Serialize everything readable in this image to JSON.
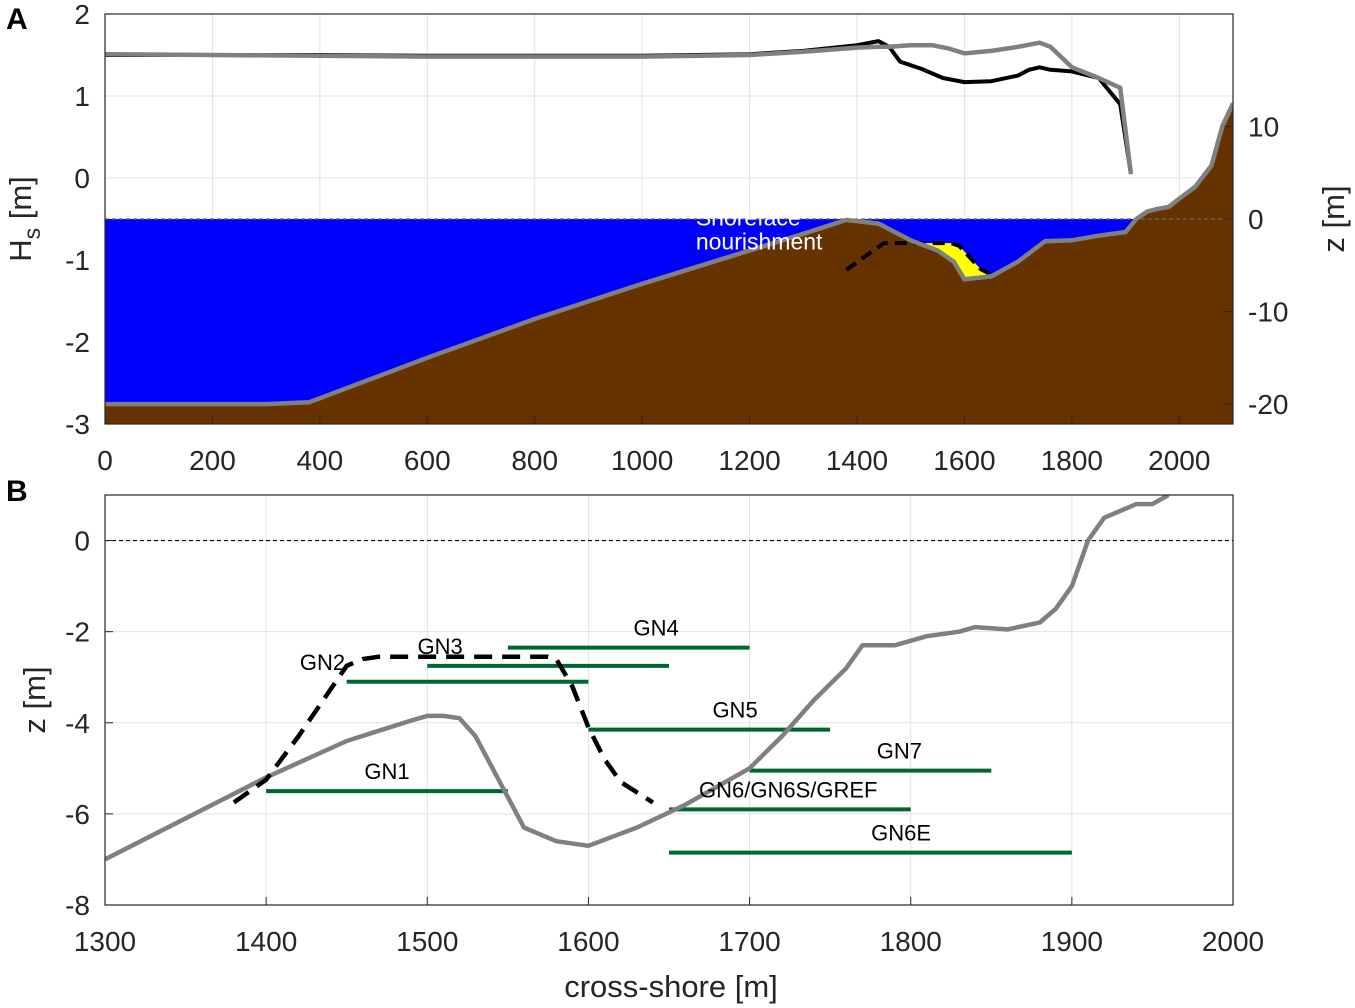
{
  "chart_data": [
    {
      "panel": "A",
      "type": "line",
      "title": "",
      "xlabel": "",
      "ylabel_left": "H_s [m]",
      "ylabel_left_main": "H",
      "ylabel_left_sub": "s",
      "ylabel_left_unit": " [m]",
      "ylabel_right": "z [m]",
      "xlim": [
        0,
        2100
      ],
      "ylim_left": [
        -3,
        2
      ],
      "ylim_right": [
        -22.15,
        22.15
      ],
      "xticks": [
        0,
        200,
        400,
        600,
        800,
        1000,
        1200,
        1400,
        1600,
        1800,
        2000
      ],
      "yticks_left": [
        2,
        1,
        0,
        -1,
        -2,
        -3
      ],
      "yticks_right": [
        10,
        0,
        -10,
        -20
      ],
      "grid": true,
      "colors": {
        "water": "#0000ff",
        "bed": "#663300",
        "nourishment": "#ffff00",
        "hs_line": "#000000",
        "hs_line_nourished": "#808080",
        "profile_line": "#808080"
      },
      "series": [
        {
          "role": "bed-profile-z",
          "axis": "right",
          "x": [
            0,
            150,
            300,
            380,
            600,
            800,
            1000,
            1200,
            1300,
            1380,
            1440,
            1500,
            1550,
            1580,
            1600,
            1650,
            1700,
            1750,
            1800,
            1850,
            1900,
            1920,
            1940,
            1960,
            1980,
            2000,
            2030,
            2060,
            2080,
            2100
          ],
          "y": [
            -20.0,
            -20.0,
            -20.0,
            -19.8,
            -15.0,
            -10.8,
            -7.0,
            -3.4,
            -1.6,
            -0.1,
            -0.5,
            -2.3,
            -3.4,
            -4.6,
            -6.5,
            -6.2,
            -4.6,
            -2.4,
            -2.3,
            -1.8,
            -1.4,
            0.0,
            0.8,
            1.1,
            1.3,
            2.2,
            3.5,
            5.8,
            10.0,
            12.5
          ]
        },
        {
          "role": "nourishment-profile-z",
          "axis": "right",
          "x": [
            1380,
            1450,
            1470,
            1575,
            1590,
            1630,
            1650
          ],
          "y": [
            -5.5,
            -2.6,
            -2.6,
            -2.6,
            -2.9,
            -5.4,
            -6.0
          ]
        },
        {
          "name": "",
          "role": "hs-reference",
          "color": "#000000",
          "axis": "left",
          "x": [
            0,
            200,
            400,
            600,
            800,
            1000,
            1200,
            1300,
            1400,
            1440,
            1460,
            1480,
            1520,
            1560,
            1600,
            1650,
            1700,
            1720,
            1740,
            1760,
            1800,
            1850,
            1890,
            1910
          ],
          "y": [
            1.5,
            1.5,
            1.5,
            1.49,
            1.49,
            1.49,
            1.51,
            1.55,
            1.62,
            1.67,
            1.6,
            1.42,
            1.33,
            1.22,
            1.17,
            1.18,
            1.25,
            1.32,
            1.35,
            1.32,
            1.3,
            1.22,
            0.9,
            0.05
          ]
        },
        {
          "name": "",
          "role": "hs-nourished",
          "color": "#808080",
          "axis": "left",
          "x": [
            0,
            200,
            400,
            600,
            800,
            1000,
            1200,
            1300,
            1400,
            1440,
            1460,
            1500,
            1540,
            1570,
            1600,
            1650,
            1700,
            1740,
            1760,
            1800,
            1850,
            1890,
            1910
          ],
          "y": [
            1.51,
            1.5,
            1.49,
            1.48,
            1.48,
            1.48,
            1.5,
            1.54,
            1.59,
            1.6,
            1.6,
            1.62,
            1.62,
            1.58,
            1.52,
            1.55,
            1.6,
            1.65,
            1.6,
            1.35,
            1.22,
            1.1,
            0.05
          ]
        }
      ],
      "annotations": [
        {
          "text": "Shoreface",
          "x": 1100,
          "y": -0.58
        },
        {
          "text": "nourishment",
          "x": 1100,
          "y": -0.87
        }
      ]
    },
    {
      "panel": "B",
      "type": "line",
      "title": "",
      "xlabel": "cross-shore [m]",
      "ylabel": "z [m]",
      "xlim": [
        1300,
        2000
      ],
      "ylim": [
        -8,
        1
      ],
      "xticks": [
        1300,
        1400,
        1500,
        1600,
        1700,
        1800,
        1900,
        2000
      ],
      "yticks": [
        0,
        -2,
        -4,
        -6,
        -8
      ],
      "grid": true,
      "series": [
        {
          "role": "bed-profile",
          "color": "#808080",
          "x": [
            1300,
            1350,
            1400,
            1450,
            1490,
            1500,
            1510,
            1520,
            1530,
            1545,
            1560,
            1580,
            1600,
            1630,
            1660,
            1700,
            1720,
            1740,
            1760,
            1770,
            1790,
            1810,
            1830,
            1840,
            1860,
            1880,
            1890,
            1900,
            1910,
            1920,
            1940,
            1950,
            1960
          ],
          "y": [
            -7.0,
            -6.1,
            -5.2,
            -4.4,
            -3.95,
            -3.85,
            -3.85,
            -3.9,
            -4.3,
            -5.3,
            -6.3,
            -6.6,
            -6.7,
            -6.3,
            -5.8,
            -5.0,
            -4.3,
            -3.5,
            -2.8,
            -2.3,
            -2.3,
            -2.1,
            -2.0,
            -1.9,
            -1.95,
            -1.8,
            -1.5,
            -1.0,
            0.0,
            0.5,
            0.8,
            0.8,
            1.0
          ]
        },
        {
          "role": "nourishment-profile",
          "color": "#000000",
          "dashed": true,
          "x": [
            1380,
            1400,
            1420,
            1450,
            1460,
            1470,
            1500,
            1540,
            1575,
            1580,
            1590,
            1600,
            1610,
            1620,
            1640
          ],
          "y": [
            -5.75,
            -5.25,
            -4.3,
            -2.75,
            -2.6,
            -2.55,
            -2.55,
            -2.55,
            -2.55,
            -2.6,
            -3.2,
            -4.1,
            -4.8,
            -5.3,
            -5.75
          ]
        }
      ],
      "sensors": [
        {
          "label": "GN1",
          "x1": 1400,
          "x2": 1550,
          "z": -5.5
        },
        {
          "label": "GN2",
          "x1": 1450,
          "x2": 1600,
          "z": -3.1
        },
        {
          "label": "GN3",
          "x1": 1500,
          "x2": 1650,
          "z": -2.75
        },
        {
          "label": "GN4",
          "x1": 1550,
          "x2": 1700,
          "z": -2.35
        },
        {
          "label": "GN5",
          "x1": 1600,
          "x2": 1750,
          "z": -4.15
        },
        {
          "label": "GN6/GN6S/GREF",
          "x1": 1650,
          "x2": 1800,
          "z": -5.9
        },
        {
          "label": "GN6E",
          "x1": 1650,
          "x2": 1900,
          "z": -6.85
        },
        {
          "label": "GN7",
          "x1": 1700,
          "x2": 1850,
          "z": -5.05
        }
      ],
      "sensor_color": "#006633"
    }
  ]
}
